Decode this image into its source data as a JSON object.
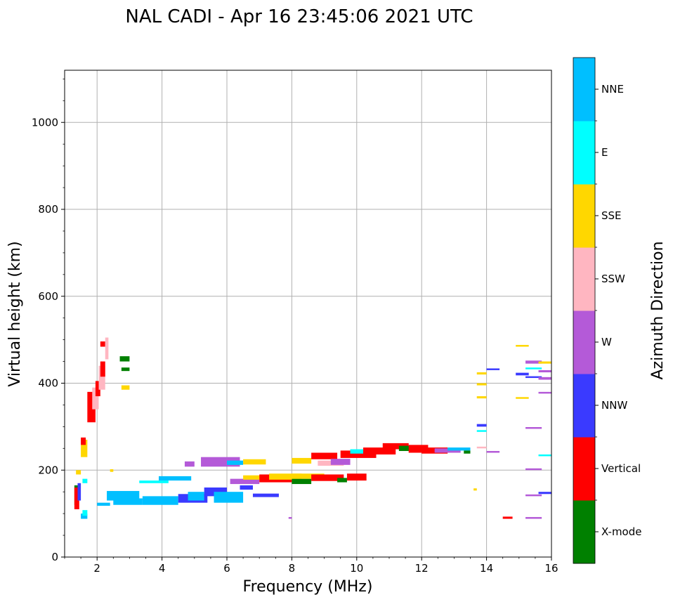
{
  "chart_data": {
    "type": "scatter",
    "title": "NAL CADI - Apr 16 23:45:06 2021 UTC",
    "xlabel": "Frequency (MHz)",
    "ylabel": "Virtual height (km)",
    "xlim": [
      1,
      16
    ],
    "ylim": [
      0,
      1120
    ],
    "xticks": [
      2,
      4,
      6,
      8,
      10,
      12,
      14,
      16
    ],
    "yticks": [
      0,
      200,
      400,
      600,
      800,
      1000
    ],
    "grid": true,
    "colorbar": {
      "label": "Azimuth Direction",
      "categories": [
        {
          "name": "X-mode",
          "color": "#008000"
        },
        {
          "name": "Vertical",
          "color": "#ff0000"
        },
        {
          "name": "NNW",
          "color": "#3a3aff"
        },
        {
          "name": "W",
          "color": "#b45ad8"
        },
        {
          "name": "SSW",
          "color": "#ffb6c1"
        },
        {
          "name": "SSE",
          "color": "#ffd700"
        },
        {
          "name": "E",
          "color": "#00ffff"
        },
        {
          "name": "NNE",
          "color": "#00bfff"
        }
      ]
    },
    "echoes": [
      {
        "f1": 1.3,
        "f2": 1.4,
        "h1": 120,
        "h2": 165,
        "c": "X-mode"
      },
      {
        "f1": 1.3,
        "f2": 1.45,
        "h1": 110,
        "h2": 160,
        "c": "Vertical"
      },
      {
        "f1": 1.4,
        "f2": 1.5,
        "h1": 130,
        "h2": 170,
        "c": "NNW"
      },
      {
        "f1": 1.5,
        "f2": 1.7,
        "h1": 88,
        "h2": 100,
        "c": "NNE"
      },
      {
        "f1": 1.55,
        "f2": 1.7,
        "h1": 95,
        "h2": 108,
        "c": "E"
      },
      {
        "f1": 1.55,
        "f2": 1.7,
        "h1": 170,
        "h2": 180,
        "c": "E"
      },
      {
        "f1": 1.5,
        "f2": 1.7,
        "h1": 230,
        "h2": 270,
        "c": "SSE"
      },
      {
        "f1": 1.5,
        "f2": 1.65,
        "h1": 258,
        "h2": 275,
        "c": "Vertical"
      },
      {
        "f1": 1.35,
        "f2": 1.5,
        "h1": 190,
        "h2": 200,
        "c": "SSE"
      },
      {
        "f1": 1.7,
        "f2": 1.95,
        "h1": 310,
        "h2": 380,
        "c": "Vertical"
      },
      {
        "f1": 1.85,
        "f2": 2.05,
        "h1": 340,
        "h2": 390,
        "c": "SSW"
      },
      {
        "f1": 1.95,
        "f2": 2.1,
        "h1": 370,
        "h2": 405,
        "c": "Vertical"
      },
      {
        "f1": 2.05,
        "f2": 2.25,
        "h1": 385,
        "h2": 440,
        "c": "SSW"
      },
      {
        "f1": 2.1,
        "f2": 2.25,
        "h1": 415,
        "h2": 450,
        "c": "Vertical"
      },
      {
        "f1": 2.1,
        "f2": 2.25,
        "h1": 484,
        "h2": 496,
        "c": "Vertical"
      },
      {
        "f1": 2.25,
        "f2": 2.35,
        "h1": 455,
        "h2": 505,
        "c": "SSW"
      },
      {
        "f1": 2.7,
        "f2": 3.0,
        "h1": 450,
        "h2": 462,
        "c": "X-mode"
      },
      {
        "f1": 2.75,
        "f2": 3.0,
        "h1": 428,
        "h2": 436,
        "c": "X-mode"
      },
      {
        "f1": 2.75,
        "f2": 3.0,
        "h1": 385,
        "h2": 395,
        "c": "SSE"
      },
      {
        "f1": 2.0,
        "f2": 2.4,
        "h1": 118,
        "h2": 125,
        "c": "NNE"
      },
      {
        "f1": 2.3,
        "f2": 3.3,
        "h1": 130,
        "h2": 152,
        "c": "NNE"
      },
      {
        "f1": 2.5,
        "f2": 3.4,
        "h1": 120,
        "h2": 135,
        "c": "NNE"
      },
      {
        "f1": 3.4,
        "f2": 4.5,
        "h1": 120,
        "h2": 140,
        "c": "NNE"
      },
      {
        "f1": 3.3,
        "f2": 4.2,
        "h1": 170,
        "h2": 176,
        "c": "E"
      },
      {
        "f1": 3.9,
        "f2": 4.9,
        "h1": 176,
        "h2": 186,
        "c": "NNE"
      },
      {
        "f1": 4.5,
        "f2": 5.4,
        "h1": 125,
        "h2": 145,
        "c": "NNW"
      },
      {
        "f1": 4.8,
        "f2": 5.3,
        "h1": 130,
        "h2": 150,
        "c": "NNE"
      },
      {
        "f1": 5.3,
        "f2": 6.0,
        "h1": 140,
        "h2": 160,
        "c": "NNW"
      },
      {
        "f1": 5.6,
        "f2": 6.5,
        "h1": 125,
        "h2": 150,
        "c": "NNE"
      },
      {
        "f1": 6.4,
        "f2": 6.8,
        "h1": 155,
        "h2": 165,
        "c": "NNW"
      },
      {
        "f1": 6.8,
        "f2": 7.6,
        "h1": 138,
        "h2": 146,
        "c": "NNW"
      },
      {
        "f1": 4.7,
        "f2": 5.0,
        "h1": 208,
        "h2": 220,
        "c": "W"
      },
      {
        "f1": 5.2,
        "f2": 6.4,
        "h1": 208,
        "h2": 230,
        "c": "W"
      },
      {
        "f1": 6.0,
        "f2": 6.5,
        "h1": 212,
        "h2": 222,
        "c": "NNE"
      },
      {
        "f1": 6.5,
        "f2": 7.2,
        "h1": 213,
        "h2": 225,
        "c": "SSE"
      },
      {
        "f1": 6.1,
        "f2": 7.0,
        "h1": 168,
        "h2": 180,
        "c": "W"
      },
      {
        "f1": 6.5,
        "f2": 7.3,
        "h1": 178,
        "h2": 188,
        "c": "SSE"
      },
      {
        "f1": 7.0,
        "f2": 8.0,
        "h1": 172,
        "h2": 190,
        "c": "Vertical"
      },
      {
        "f1": 7.3,
        "f2": 8.3,
        "h1": 178,
        "h2": 192,
        "c": "SSE"
      },
      {
        "f1": 8.0,
        "f2": 8.6,
        "h1": 168,
        "h2": 180,
        "c": "X-mode"
      },
      {
        "f1": 8.0,
        "f2": 9.0,
        "h1": 180,
        "h2": 192,
        "c": "SSE"
      },
      {
        "f1": 8.6,
        "f2": 9.6,
        "h1": 175,
        "h2": 190,
        "c": "Vertical"
      },
      {
        "f1": 9.4,
        "f2": 9.7,
        "h1": 172,
        "h2": 182,
        "c": "X-mode"
      },
      {
        "f1": 9.7,
        "f2": 10.3,
        "h1": 176,
        "h2": 192,
        "c": "Vertical"
      },
      {
        "f1": 8.0,
        "f2": 8.6,
        "h1": 215,
        "h2": 228,
        "c": "SSE"
      },
      {
        "f1": 8.6,
        "f2": 9.4,
        "h1": 225,
        "h2": 240,
        "c": "Vertical"
      },
      {
        "f1": 8.8,
        "f2": 9.6,
        "h1": 210,
        "h2": 222,
        "c": "SSW"
      },
      {
        "f1": 9.2,
        "f2": 9.8,
        "h1": 212,
        "h2": 226,
        "c": "W"
      },
      {
        "f1": 9.5,
        "f2": 10.6,
        "h1": 228,
        "h2": 245,
        "c": "Vertical"
      },
      {
        "f1": 9.8,
        "f2": 10.2,
        "h1": 238,
        "h2": 248,
        "c": "E"
      },
      {
        "f1": 10.2,
        "f2": 11.2,
        "h1": 236,
        "h2": 252,
        "c": "Vertical"
      },
      {
        "f1": 10.8,
        "f2": 11.6,
        "h1": 248,
        "h2": 262,
        "c": "Vertical"
      },
      {
        "f1": 11.3,
        "f2": 11.8,
        "h1": 244,
        "h2": 256,
        "c": "X-mode"
      },
      {
        "f1": 11.6,
        "f2": 12.2,
        "h1": 240,
        "h2": 258,
        "c": "Vertical"
      },
      {
        "f1": 12.0,
        "f2": 12.8,
        "h1": 238,
        "h2": 252,
        "c": "Vertical"
      },
      {
        "f1": 12.4,
        "f2": 13.2,
        "h1": 240,
        "h2": 250,
        "c": "W"
      },
      {
        "f1": 12.8,
        "f2": 13.5,
        "h1": 245,
        "h2": 252,
        "c": "NNE"
      },
      {
        "f1": 13.3,
        "f2": 13.5,
        "h1": 238,
        "h2": 245,
        "c": "X-mode"
      },
      {
        "f1": 13.7,
        "f2": 14.0,
        "h1": 395,
        "h2": 400,
        "c": "SSE"
      },
      {
        "f1": 13.7,
        "f2": 14.0,
        "h1": 420,
        "h2": 425,
        "c": "SSE"
      },
      {
        "f1": 13.7,
        "f2": 14.0,
        "h1": 365,
        "h2": 370,
        "c": "SSE"
      },
      {
        "f1": 13.7,
        "f2": 14.0,
        "h1": 300,
        "h2": 306,
        "c": "NNW"
      },
      {
        "f1": 13.7,
        "f2": 14.0,
        "h1": 288,
        "h2": 292,
        "c": "E"
      },
      {
        "f1": 13.7,
        "f2": 14.0,
        "h1": 250,
        "h2": 254,
        "c": "SSW"
      },
      {
        "f1": 14.0,
        "f2": 14.4,
        "h1": 430,
        "h2": 434,
        "c": "NNW"
      },
      {
        "f1": 14.0,
        "f2": 14.4,
        "h1": 240,
        "h2": 244,
        "c": "W"
      },
      {
        "f1": 14.5,
        "f2": 14.8,
        "h1": 88,
        "h2": 93,
        "c": "Vertical"
      },
      {
        "f1": 14.9,
        "f2": 15.3,
        "h1": 484,
        "h2": 488,
        "c": "SSE"
      },
      {
        "f1": 14.9,
        "f2": 15.3,
        "h1": 418,
        "h2": 424,
        "c": "NNW"
      },
      {
        "f1": 14.9,
        "f2": 15.3,
        "h1": 364,
        "h2": 368,
        "c": "SSE"
      },
      {
        "f1": 15.2,
        "f2": 15.7,
        "h1": 445,
        "h2": 452,
        "c": "W"
      },
      {
        "f1": 15.2,
        "f2": 15.7,
        "h1": 432,
        "h2": 436,
        "c": "E"
      },
      {
        "f1": 15.2,
        "f2": 15.7,
        "h1": 412,
        "h2": 416,
        "c": "NNW"
      },
      {
        "f1": 15.2,
        "f2": 15.7,
        "h1": 295,
        "h2": 299,
        "c": "W"
      },
      {
        "f1": 15.2,
        "f2": 15.7,
        "h1": 200,
        "h2": 204,
        "c": "W"
      },
      {
        "f1": 15.2,
        "f2": 15.7,
        "h1": 140,
        "h2": 144,
        "c": "W"
      },
      {
        "f1": 15.2,
        "f2": 15.7,
        "h1": 88,
        "h2": 92,
        "c": "W"
      },
      {
        "f1": 15.6,
        "f2": 16.0,
        "h1": 445,
        "h2": 450,
        "c": "SSE"
      },
      {
        "f1": 15.6,
        "f2": 16.0,
        "h1": 425,
        "h2": 430,
        "c": "W"
      },
      {
        "f1": 15.6,
        "f2": 16.0,
        "h1": 408,
        "h2": 414,
        "c": "W"
      },
      {
        "f1": 15.6,
        "f2": 16.0,
        "h1": 376,
        "h2": 380,
        "c": "W"
      },
      {
        "f1": 15.6,
        "f2": 16.0,
        "h1": 232,
        "h2": 236,
        "c": "E"
      },
      {
        "f1": 15.6,
        "f2": 16.0,
        "h1": 145,
        "h2": 150,
        "c": "NNW"
      },
      {
        "f1": 2.4,
        "f2": 2.5,
        "h1": 196,
        "h2": 202,
        "c": "SSE"
      },
      {
        "f1": 13.6,
        "f2": 13.7,
        "h1": 153,
        "h2": 158,
        "c": "SSE"
      },
      {
        "f1": 7.9,
        "f2": 8.0,
        "h1": 88,
        "h2": 92,
        "c": "W"
      }
    ]
  }
}
